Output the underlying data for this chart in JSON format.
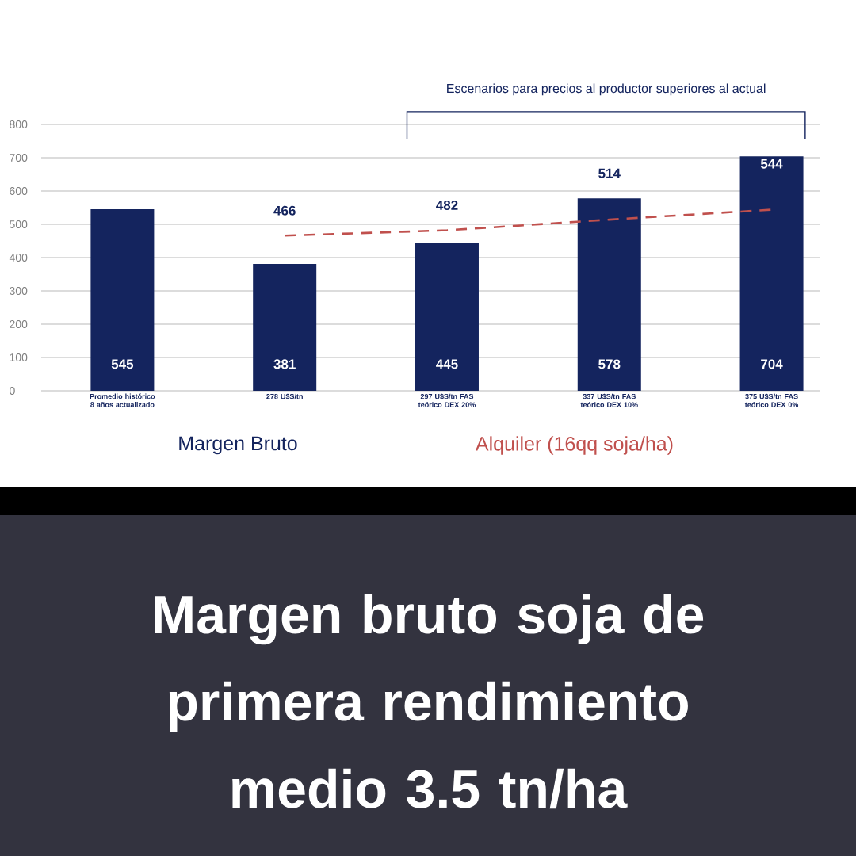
{
  "chart_data": {
    "type": "bar",
    "title": "Margen bruto soja de primera rendimiento medio 3.5 tn/ha",
    "annotations": [
      "Escenarios para precios al productor superiores al actual"
    ],
    "categories": [
      "Promedio histórico 8 años actualizado",
      "278 U$S/tn",
      "297 U$S/tn FAS teórico DEX 20%",
      "337 U$S/tn FAS teórico DEX 10%",
      "375 U$S/tn FAS teórico DEX 0%"
    ],
    "series": [
      {
        "name": "Margen Bruto",
        "color": "#14245e",
        "values": [
          545,
          381,
          445,
          578,
          704
        ]
      },
      {
        "name": "Alquiler (16qq soja/ha)",
        "type": "line",
        "color": "#c0504d",
        "values": [
          null,
          466,
          482,
          514,
          544
        ]
      }
    ],
    "ylim": [
      0,
      800
    ],
    "yticks": [
      0,
      100,
      200,
      300,
      400,
      500,
      600,
      700,
      800
    ],
    "grid": "y",
    "legend": "bottom",
    "data_labels": true,
    "line_style": "dashed",
    "marker": "none"
  }
}
